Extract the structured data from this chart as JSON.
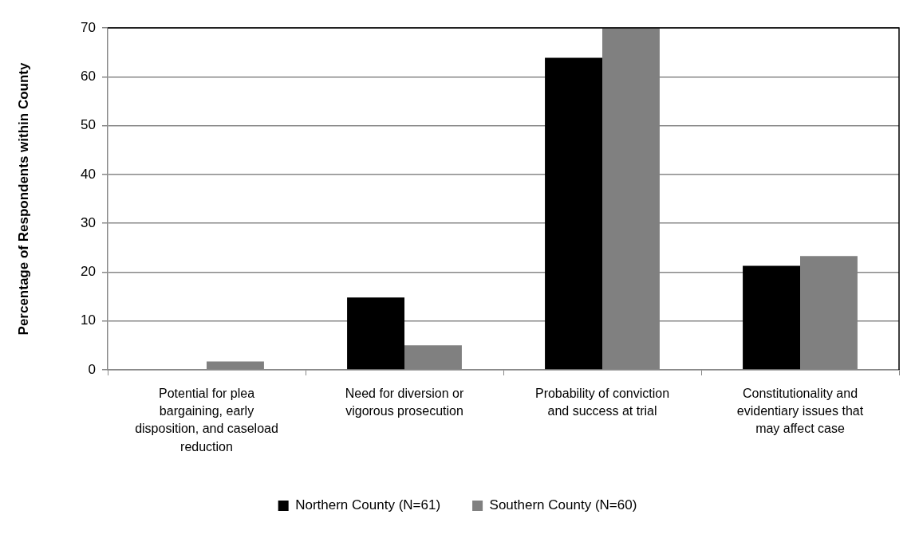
{
  "chart_data": {
    "type": "bar",
    "ylabel": "Percentage of Respondents within County",
    "categories": [
      "Potential for plea bargaining, early disposition, and caseload reduction",
      "Need for diversion or vigorous prosecution",
      "Probability of conviction and success at trial",
      "Constitutionality and evidentiary issues that may affect case"
    ],
    "series": [
      {
        "name": "Northern County (N=61)",
        "color": "#000000",
        "values": [
          0,
          14.8,
          63.9,
          21.3
        ]
      },
      {
        "name": "Southern County (N=60)",
        "color": "#808080",
        "values": [
          1.7,
          5.0,
          70,
          23.3
        ]
      }
    ],
    "ylim": [
      0,
      70
    ],
    "yticks": [
      0,
      10,
      20,
      30,
      40,
      50,
      60,
      70
    ],
    "grid": "y",
    "legend": "bottom"
  }
}
